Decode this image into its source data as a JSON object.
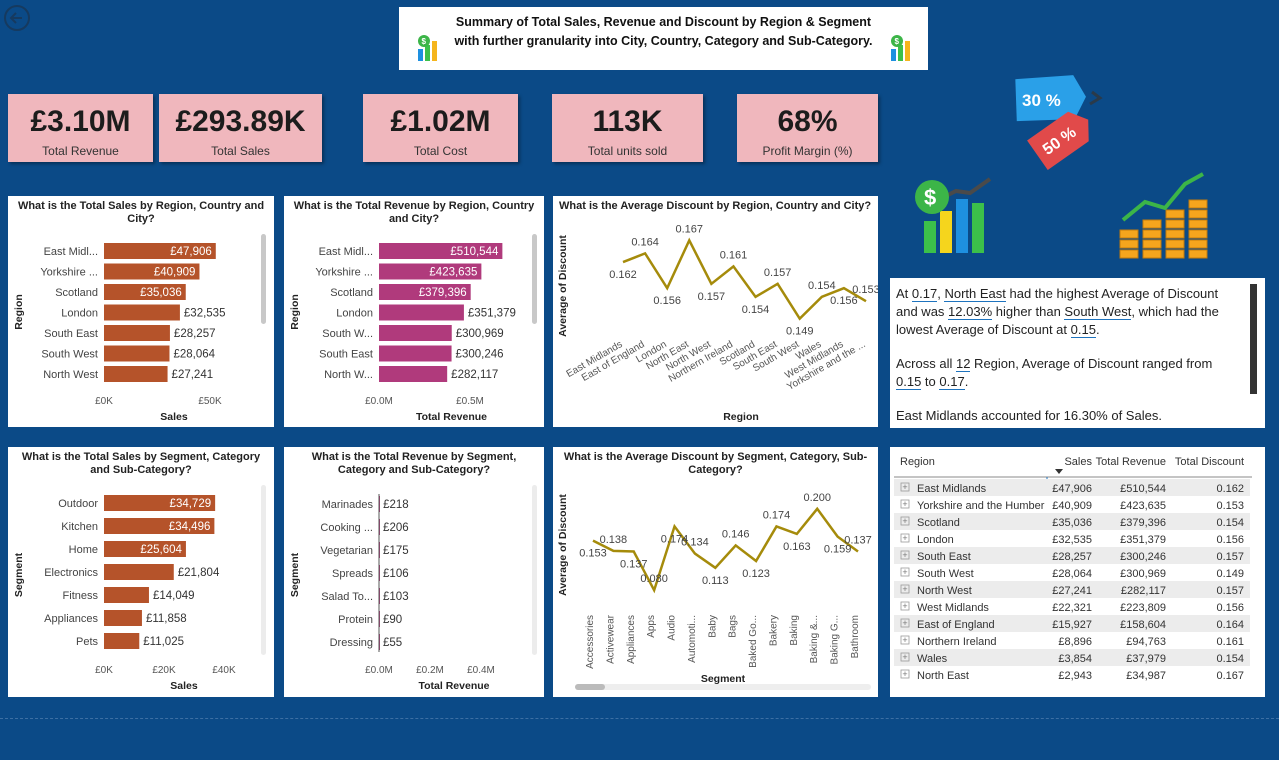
{
  "title": "Summary of Total Sales, Revenue and Discount by Region & Segment with further granularity into City, Country, Category and Sub-Category.",
  "kpis": [
    {
      "value": "£3.10M",
      "label": "Total Revenue"
    },
    {
      "value": "£293.89K",
      "label": "Total Sales"
    },
    {
      "value": "£1.02M",
      "label": "Total Cost"
    },
    {
      "value": "113K",
      "label": "Total units sold"
    },
    {
      "value": "68%",
      "label": "Profit Margin (%)"
    }
  ],
  "discount_tags": [
    "30 %",
    "50 %"
  ],
  "narrative": {
    "p1": [
      "At ",
      "0.17",
      ", ",
      "North East",
      " had the highest Average of Discount and was ",
      "12.03%",
      " higher than ",
      "South West",
      ", which had the lowest Average of Discount at ",
      "0.15",
      "."
    ],
    "p2": [
      "Across all ",
      "12",
      " Region, Average of Discount ranged from ",
      "0.15",
      " to ",
      "0.17",
      "."
    ],
    "p3": "East Midlands accounted for 16.30% of Sales."
  },
  "table": {
    "headers": [
      "Region",
      "Sales",
      "Total Revenue",
      "Total Discount"
    ],
    "rows": [
      [
        "East Midlands",
        "£47,906",
        "£510,544",
        "0.162"
      ],
      [
        "Yorkshire and the Humber",
        "£40,909",
        "£423,635",
        "0.153"
      ],
      [
        "Scotland",
        "£35,036",
        "£379,396",
        "0.154"
      ],
      [
        "London",
        "£32,535",
        "£351,379",
        "0.156"
      ],
      [
        "South East",
        "£28,257",
        "£300,246",
        "0.157"
      ],
      [
        "South West",
        "£28,064",
        "£300,969",
        "0.149"
      ],
      [
        "North West",
        "£27,241",
        "£282,117",
        "0.157"
      ],
      [
        "West Midlands",
        "£22,321",
        "£223,809",
        "0.156"
      ],
      [
        "East of England",
        "£15,927",
        "£158,604",
        "0.164"
      ],
      [
        "Northern Ireland",
        "£8,896",
        "£94,763",
        "0.161"
      ],
      [
        "Wales",
        "£3,854",
        "£37,979",
        "0.154"
      ],
      [
        "North East",
        "£2,943",
        "£34,987",
        "0.167"
      ]
    ]
  },
  "chart_data": [
    {
      "type": "bar",
      "orientation": "horizontal",
      "title": "What is the Total Sales by Region, Country and City?",
      "xlabel": "Sales",
      "ylabel": "Region",
      "xlim": [
        0,
        60000
      ],
      "xticks": [
        "£0K",
        "£50K"
      ],
      "categories": [
        "East Midl...",
        "Yorkshire ...",
        "Scotland",
        "London",
        "South East",
        "South West",
        "North West"
      ],
      "values": [
        47906,
        40909,
        35036,
        32535,
        28257,
        28064,
        27241
      ],
      "labels": [
        "£47,906",
        "£40,909",
        "£35,036",
        "£32,535",
        "£28,257",
        "£28,064",
        "£27,241"
      ],
      "color": "#b5532a"
    },
    {
      "type": "bar",
      "orientation": "horizontal",
      "title": "What is the Total Revenue by Region, Country and City?",
      "xlabel": "Total Revenue",
      "ylabel": "Region",
      "xlim": [
        0,
        600000
      ],
      "xticks": [
        "£0.0M",
        "£0.5M"
      ],
      "categories": [
        "East Midl...",
        "Yorkshire ...",
        "Scotland",
        "London",
        "South W...",
        "South East",
        "North W..."
      ],
      "values": [
        510544,
        423635,
        379396,
        351379,
        300969,
        300246,
        282117
      ],
      "labels": [
        "£510,544",
        "£423,635",
        "£379,396",
        "£351,379",
        "£300,969",
        "£300,246",
        "£282,117"
      ],
      "color": "#b03a7c"
    },
    {
      "type": "line",
      "title": "What is the Average Discount by Region, Country and City?",
      "xlabel": "Region",
      "ylabel": "Average of Discount",
      "ylim": [
        0.145,
        0.168
      ],
      "categories": [
        "East Midlands",
        "East of England",
        "London",
        "North East",
        "North West",
        "Northern Ireland",
        "Scotland",
        "South East",
        "South West",
        "Wales",
        "West Midlands",
        "Yorkshire and the ..."
      ],
      "values": [
        0.162,
        0.164,
        0.156,
        0.167,
        0.157,
        0.161,
        0.154,
        0.157,
        0.149,
        0.154,
        0.156,
        0.153
      ],
      "labels": [
        "0.162",
        "0.164",
        "0.156",
        "0.167",
        "0.157",
        "0.161",
        "0.154",
        "0.157",
        "0.149",
        "0.154",
        "0.156",
        "0.153"
      ],
      "color": "#a58b0b"
    },
    {
      "type": "bar",
      "orientation": "horizontal",
      "title": "What is the Total Sales by Segment, Category and Sub-Category?",
      "xlabel": "Sales",
      "ylabel": "Segment",
      "xlim": [
        0,
        50000
      ],
      "xticks": [
        "£0K",
        "£20K",
        "£40K"
      ],
      "categories": [
        "Outdoor",
        "Kitchen",
        "Home",
        "Electronics",
        "Fitness",
        "Appliances",
        "Pets"
      ],
      "values": [
        34729,
        34496,
        25604,
        21804,
        14049,
        11858,
        11025
      ],
      "labels": [
        "£34,729",
        "£34,496",
        "£25,604",
        "£21,804",
        "£14,049",
        "£11,858",
        "£11,025"
      ],
      "color": "#b5532a"
    },
    {
      "type": "bar",
      "orientation": "horizontal",
      "title": "What is the Total Revenue by Segment, Category and Sub-Category?",
      "xlabel": "Total Revenue",
      "ylabel": "Segment",
      "xlim": [
        0,
        500000
      ],
      "xticks": [
        "£0.0M",
        "£0.2M",
        "£0.4M"
      ],
      "categories": [
        "Marinades",
        "Cooking ...",
        "Vegetarian",
        "Spreads",
        "Salad To...",
        "Protein",
        "Dressing"
      ],
      "values": [
        218,
        206,
        175,
        106,
        103,
        90,
        55
      ],
      "labels": [
        "£218",
        "£206",
        "£175",
        "£106",
        "£103",
        "£90",
        "£55"
      ],
      "color": "#b03a7c"
    },
    {
      "type": "line",
      "title": "What is the Average Discount by Segment, Category, Sub-Category?",
      "xlabel": "Segment",
      "ylabel": "Average of Discount",
      "ylim": [
        0.07,
        0.21
      ],
      "categories": [
        "Accessories",
        "Activewear",
        "Appliances",
        "Apps",
        "Audio",
        "Automoti...",
        "Baby",
        "Bags",
        "Baked Go...",
        "Bakery",
        "Baking",
        "Baking &...",
        "Baking G...",
        "Bathroom"
      ],
      "values": [
        0.153,
        0.138,
        0.137,
        0.08,
        0.174,
        0.134,
        0.113,
        0.146,
        0.123,
        0.174,
        0.163,
        0.2,
        0.159,
        0.137
      ],
      "labels": [
        "0.153",
        "0.138",
        "0.137",
        "0.080",
        "0.174",
        "0.134",
        "0.113",
        "0.146",
        "0.123",
        "0.174",
        "0.163",
        "0.200",
        "0.159",
        "0.137"
      ],
      "color": "#a58b0b"
    }
  ]
}
